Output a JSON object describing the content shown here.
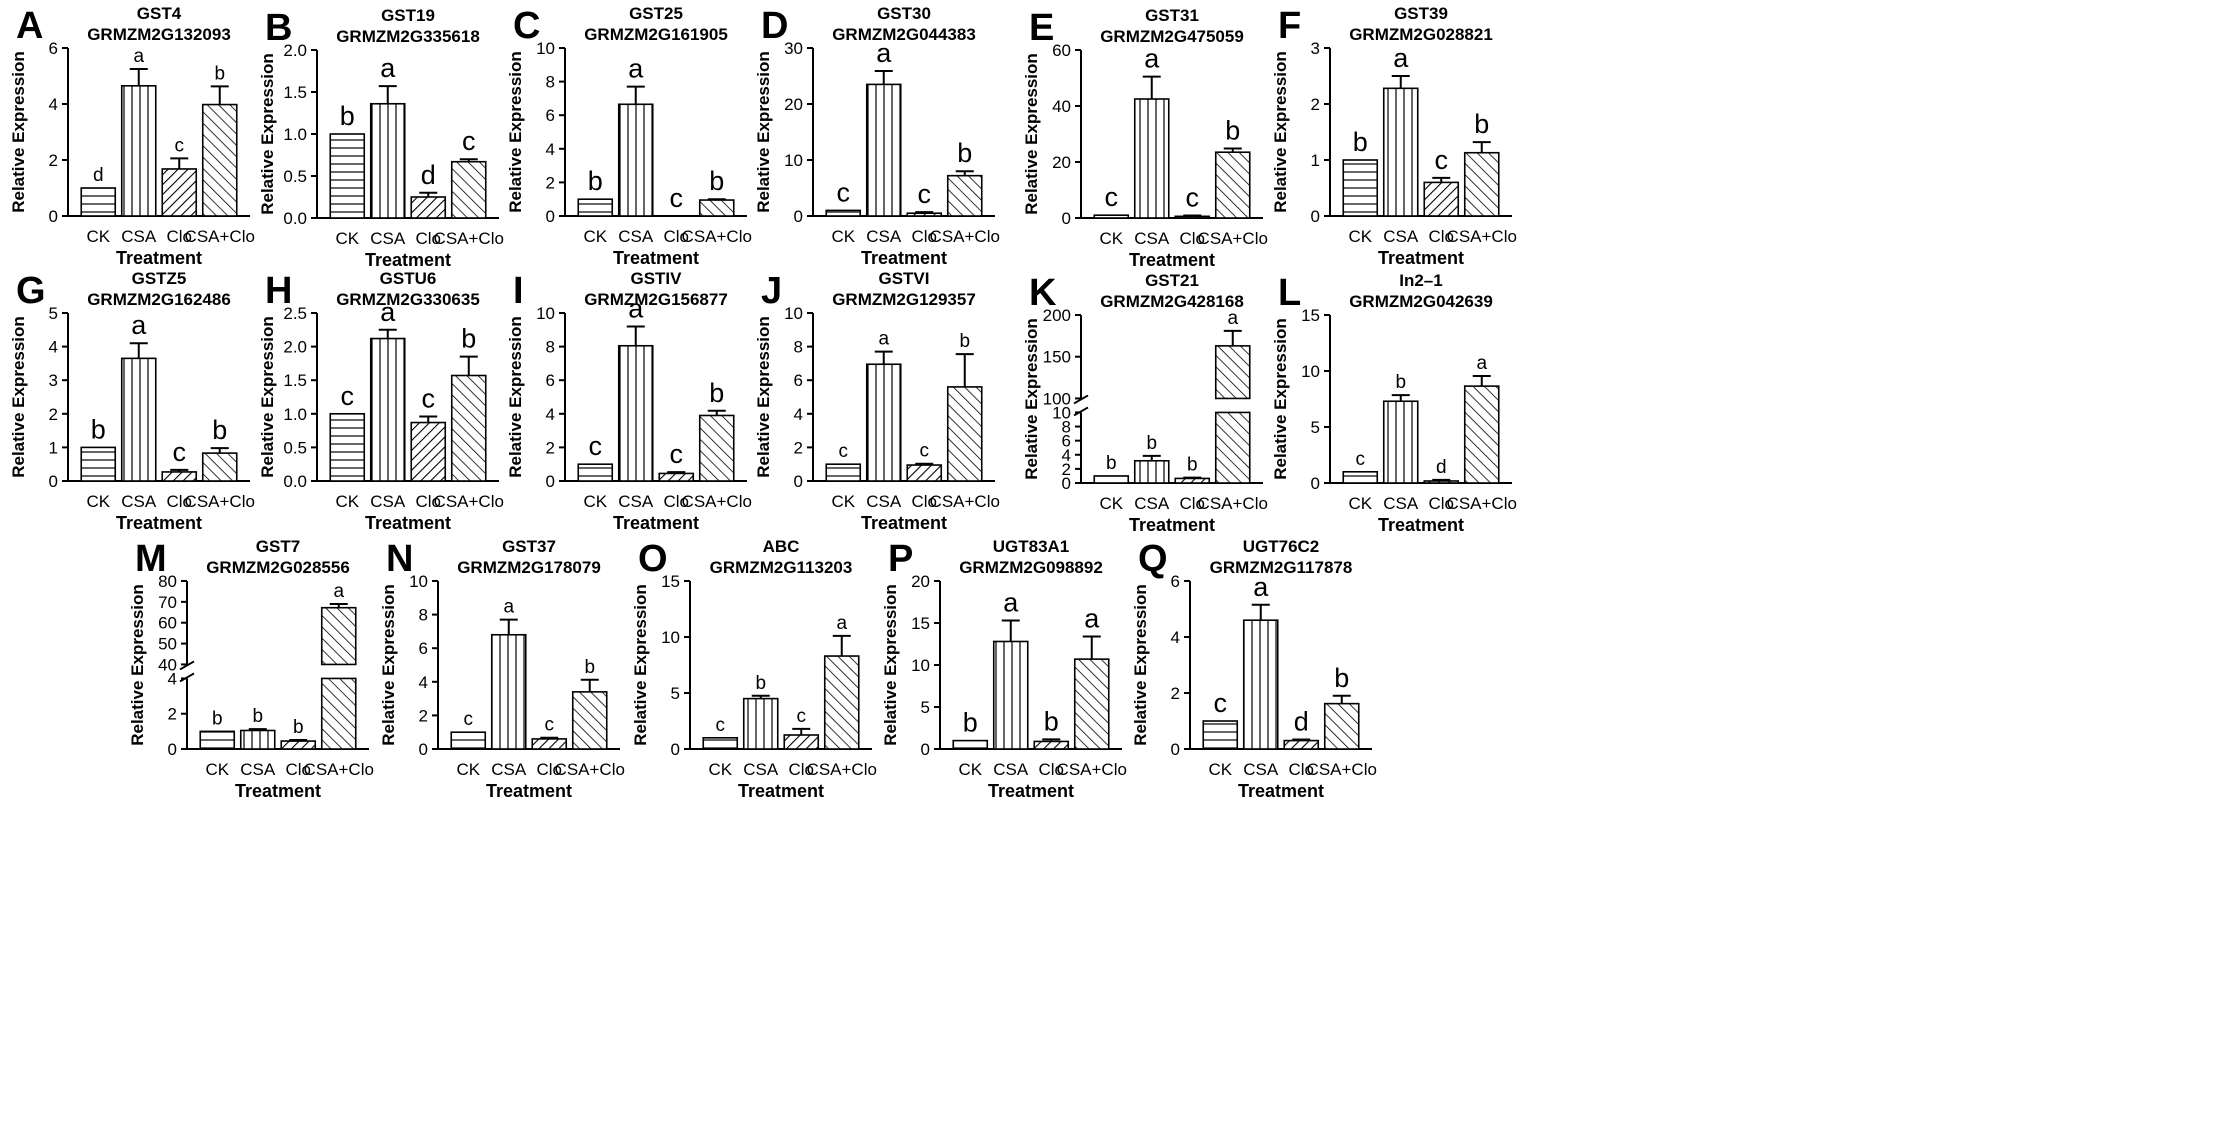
{
  "figure": {
    "xlabel": "Treatment",
    "ylabel": "Relative Expression",
    "categories": [
      "CK",
      "CSA",
      "Clo",
      "CSA+Clo"
    ]
  },
  "chart_data": [
    {
      "type": "bar",
      "panel": "A",
      "gene": "GST4",
      "id": "GRMZM2G132093",
      "ylim": [
        0,
        6
      ],
      "yticks": [
        "0",
        "2",
        "4",
        "6"
      ],
      "values": [
        1.0,
        4.65,
        1.68,
        3.98
      ],
      "errors": [
        0,
        0.6,
        0.38,
        0.65
      ],
      "letters": [
        "d",
        "a",
        "c",
        "b"
      ],
      "letter_size": "small"
    },
    {
      "type": "bar",
      "panel": "B",
      "gene": "GST19",
      "id": "GRMZM2G335618",
      "ylim": [
        0,
        2.0
      ],
      "yticks": [
        "0.0",
        "0.5",
        "1.0",
        "1.5",
        "2.0"
      ],
      "values": [
        1.0,
        1.36,
        0.25,
        0.67
      ],
      "errors": [
        0,
        0.21,
        0.05,
        0.03
      ],
      "letters": [
        "b",
        "a",
        "d",
        "c"
      ],
      "letter_size": "large"
    },
    {
      "type": "bar",
      "panel": "C",
      "gene": "GST25",
      "id": "GRMZM2G161905",
      "ylim": [
        0,
        10
      ],
      "yticks": [
        "0",
        "2",
        "4",
        "6",
        "8",
        "10"
      ],
      "values": [
        1.0,
        6.65,
        0.0,
        0.95
      ],
      "errors": [
        0,
        1.05,
        0,
        0.05
      ],
      "letters": [
        "b",
        "a",
        "c",
        "b"
      ],
      "letter_size": "large"
    },
    {
      "type": "bar",
      "panel": "D",
      "gene": "GST30",
      "id": "GRMZM2G044383",
      "ylim": [
        0,
        30
      ],
      "yticks": [
        "0",
        "10",
        "20",
        "30"
      ],
      "values": [
        1.0,
        23.5,
        0.5,
        7.2
      ],
      "errors": [
        0,
        2.4,
        0.2,
        0.8
      ],
      "letters": [
        "c",
        "a",
        "c",
        "b"
      ],
      "letter_size": "large"
    },
    {
      "type": "bar",
      "panel": "E",
      "gene": "GST31",
      "id": "GRMZM2G475059",
      "ylim": [
        0,
        60
      ],
      "yticks": [
        "0",
        "20",
        "40",
        "60"
      ],
      "values": [
        1.0,
        42.5,
        0.6,
        23.5
      ],
      "errors": [
        0,
        8.0,
        0.3,
        1.3
      ],
      "letters": [
        "c",
        "a",
        "c",
        "b"
      ],
      "letter_size": "large"
    },
    {
      "type": "bar",
      "panel": "F",
      "gene": "GST39",
      "id": "GRMZM2G028821",
      "ylim": [
        0,
        3
      ],
      "yticks": [
        "0",
        "1",
        "2",
        "3"
      ],
      "values": [
        1.0,
        2.28,
        0.6,
        1.13
      ],
      "errors": [
        0,
        0.22,
        0.08,
        0.19
      ],
      "letters": [
        "b",
        "a",
        "c",
        "b"
      ],
      "letter_size": "large"
    },
    {
      "type": "bar",
      "panel": "G",
      "gene": "GSTZ5",
      "id": "GRMZM2G162486",
      "ylim": [
        0,
        5
      ],
      "yticks": [
        "0",
        "1",
        "2",
        "3",
        "4",
        "5"
      ],
      "values": [
        1.0,
        3.65,
        0.27,
        0.83
      ],
      "errors": [
        0,
        0.45,
        0.06,
        0.15
      ],
      "letters": [
        "b",
        "a",
        "c",
        "b"
      ],
      "letter_size": "large"
    },
    {
      "type": "bar",
      "panel": "H",
      "gene": "GSTU6",
      "id": "GRMZM2G330635",
      "ylim": [
        0,
        2.5
      ],
      "yticks": [
        "0.0",
        "0.5",
        "1.0",
        "1.5",
        "2.0",
        "2.5"
      ],
      "values": [
        1.0,
        2.12,
        0.87,
        1.57
      ],
      "errors": [
        0,
        0.13,
        0.09,
        0.28
      ],
      "letters": [
        "c",
        "a",
        "c",
        "b"
      ],
      "letter_size": "large"
    },
    {
      "type": "bar",
      "panel": "I",
      "gene": "GSTIV",
      "id": "GRMZM2G156877",
      "ylim": [
        0,
        10
      ],
      "yticks": [
        "0",
        "2",
        "4",
        "6",
        "8",
        "10"
      ],
      "values": [
        1.0,
        8.05,
        0.45,
        3.9
      ],
      "errors": [
        0,
        1.15,
        0.08,
        0.28
      ],
      "letters": [
        "c",
        "a",
        "c",
        "b"
      ],
      "letter_size": "large"
    },
    {
      "type": "bar",
      "panel": "J",
      "gene": "GSTVI",
      "id": "GRMZM2G129357",
      "ylim": [
        0,
        10
      ],
      "yticks": [
        "0",
        "2",
        "4",
        "6",
        "8",
        "10"
      ],
      "values": [
        1.0,
        6.95,
        0.95,
        5.6
      ],
      "errors": [
        0,
        0.75,
        0.08,
        1.95
      ],
      "letters": [
        "c",
        "a",
        "c",
        "b"
      ],
      "letter_size": "small"
    },
    {
      "type": "bar",
      "panel": "K",
      "gene": "GST21",
      "id": "GRMZM2G428168",
      "axis_break": {
        "lower": [
          0,
          10
        ],
        "upper": [
          100,
          200
        ]
      },
      "yticks": [
        "0",
        "2",
        "4",
        "6",
        "8",
        "10",
        "100",
        "150",
        "200"
      ],
      "values": [
        1.0,
        3.15,
        0.65,
        163
      ],
      "errors": [
        0,
        0.7,
        0.12,
        18
      ],
      "letters": [
        "b",
        "b",
        "b",
        "a"
      ],
      "letter_size": "small"
    },
    {
      "type": "bar",
      "panel": "L",
      "gene": "In2–1",
      "id": "GRMZM2G042639",
      "ylim": [
        0,
        15
      ],
      "yticks": [
        "0",
        "5",
        "10",
        "15"
      ],
      "values": [
        1.0,
        7.3,
        0.18,
        8.65
      ],
      "errors": [
        0,
        0.55,
        0.1,
        0.9
      ],
      "letters": [
        "c",
        "b",
        "d",
        "a"
      ],
      "letter_size": "small"
    },
    {
      "type": "bar",
      "panel": "M",
      "gene": "GST7",
      "id": "GRMZM2G028556",
      "axis_break": {
        "lower": [
          0,
          4
        ],
        "upper": [
          40,
          80
        ]
      },
      "yticks": [
        "0",
        "2",
        "4",
        "40",
        "50",
        "60",
        "70",
        "80"
      ],
      "values": [
        1.0,
        1.05,
        0.45,
        67.2
      ],
      "errors": [
        0,
        0.08,
        0.06,
        1.8
      ],
      "letters": [
        "b",
        "b",
        "b",
        "a"
      ],
      "letter_size": "small"
    },
    {
      "type": "bar",
      "panel": "N",
      "gene": "GST37",
      "id": "GRMZM2G178079",
      "ylim": [
        0,
        10
      ],
      "yticks": [
        "0",
        "2",
        "4",
        "6",
        "8",
        "10"
      ],
      "values": [
        1.0,
        6.8,
        0.6,
        3.4
      ],
      "errors": [
        0,
        0.9,
        0.07,
        0.72
      ],
      "letters": [
        "c",
        "a",
        "c",
        "b"
      ],
      "letter_size": "small"
    },
    {
      "type": "bar",
      "panel": "O",
      "gene": "ABC",
      "id": "GRMZM2G113203",
      "ylim": [
        0,
        15
      ],
      "yticks": [
        "0",
        "5",
        "10",
        "15"
      ],
      "values": [
        1.0,
        4.5,
        1.25,
        8.3
      ],
      "errors": [
        0,
        0.25,
        0.55,
        1.8
      ],
      "letters": [
        "c",
        "b",
        "c",
        "a"
      ],
      "letter_size": "small"
    },
    {
      "type": "bar",
      "panel": "P",
      "gene": "UGT83A1",
      "id": "GRMZM2G098892",
      "ylim": [
        0,
        20
      ],
      "yticks": [
        "0",
        "5",
        "10",
        "15",
        "20"
      ],
      "values": [
        1.0,
        12.8,
        0.9,
        10.7
      ],
      "errors": [
        0,
        2.5,
        0.25,
        2.7
      ],
      "letters": [
        "b",
        "a",
        "b",
        "a"
      ],
      "letter_size": "large"
    },
    {
      "type": "bar",
      "panel": "Q",
      "gene": "UGT76C2",
      "id": "GRMZM2G117878",
      "ylim": [
        0,
        6
      ],
      "yticks": [
        "0",
        "2",
        "4",
        "6"
      ],
      "values": [
        1.0,
        4.6,
        0.3,
        1.62
      ],
      "errors": [
        0,
        0.55,
        0.04,
        0.28
      ],
      "letters": [
        "c",
        "a",
        "d",
        "b"
      ],
      "letter_size": "large"
    }
  ]
}
